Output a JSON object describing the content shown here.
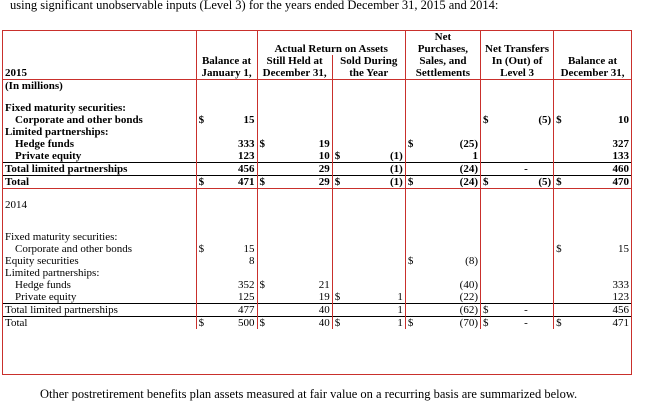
{
  "intro_text": "using significant unobservable inputs (Level 3) for the years ended December 31, 2015 and 2014:",
  "outro_text": "Other postretirement benefits plan assets measured at fair value on a recurring basis are summarized below.",
  "headers": {
    "net": "Net",
    "actual_return": "Actual Return on Assets",
    "balance_jan_1": "Balance at",
    "balance_jan_2": "January 1,",
    "still_held_1": "Still Held at",
    "still_held_2": "December 31,",
    "sold_1": "Sold During",
    "sold_2": "the Year",
    "purchases_1": "Purchases,",
    "purchases_2": "Sales, and",
    "purchases_3": "Settlements",
    "transfers_1": "Net Transfers",
    "transfers_2": "In (Out) of",
    "transfers_3": "Level 3",
    "balance_dec_1": "Balance at",
    "balance_dec_2": "December 31,"
  },
  "section_2015": {
    "year": "2015",
    "units": "(In millions)",
    "rows": {
      "fixed": "Fixed maturity securities:",
      "corp": {
        "label": "Corporate and other bonds",
        "jan": "15",
        "transfers": "(5)",
        "dec": "10"
      },
      "lp": "Limited partnerships:",
      "hedge": {
        "label": "Hedge funds",
        "jan": "333",
        "held": "19",
        "purch": "(25)",
        "dec": "327"
      },
      "pe": {
        "label": "Private equity",
        "jan": "123",
        "held": "10",
        "sold": "(1)",
        "purch": "1",
        "dec": "133"
      },
      "total_lp": {
        "label": "Total limited partnerships",
        "jan": "456",
        "held": "29",
        "sold": "(1)",
        "purch": "(24)",
        "transfers": "-",
        "dec": "460"
      },
      "total": {
        "label": "Total",
        "jan": "471",
        "held": "29",
        "sold": "(1)",
        "purch": "(24)",
        "transfers": "(5)",
        "dec": "470"
      }
    }
  },
  "section_2014": {
    "year": "2014",
    "rows": {
      "fixed": "Fixed maturity securities:",
      "corp": {
        "label": "Corporate and other bonds",
        "jan": "15",
        "dec": "15"
      },
      "equity": {
        "label": "Equity securities",
        "jan": "8",
        "purch": "(8)"
      },
      "lp": "Limited partnerships:",
      "hedge": {
        "label": "Hedge funds",
        "jan": "352",
        "held": "21",
        "purch": "(40)",
        "dec": "333"
      },
      "pe": {
        "label": "Private equity",
        "jan": "125",
        "held": "19",
        "sold": "1",
        "purch": "(22)",
        "dec": "123"
      },
      "total_lp": {
        "label": "Total limited partnerships",
        "jan": "477",
        "held": "40",
        "sold": "1",
        "purch": "(62)",
        "transfers": "-",
        "dec": "456"
      },
      "total": {
        "label": "Total",
        "jan": "500",
        "held": "40",
        "sold": "1",
        "purch": "(70)",
        "transfers": "-",
        "dec": "471"
      }
    }
  },
  "currency": "$"
}
